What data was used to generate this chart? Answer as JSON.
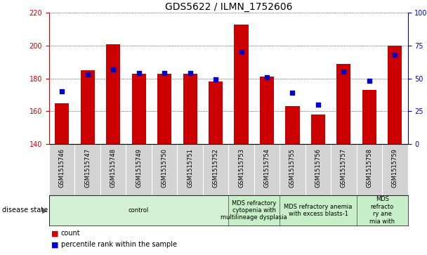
{
  "title": "GDS5622 / ILMN_1752606",
  "samples": [
    "GSM1515746",
    "GSM1515747",
    "GSM1515748",
    "GSM1515749",
    "GSM1515750",
    "GSM1515751",
    "GSM1515752",
    "GSM1515753",
    "GSM1515754",
    "GSM1515755",
    "GSM1515756",
    "GSM1515757",
    "GSM1515758",
    "GSM1515759"
  ],
  "counts": [
    165,
    185,
    201,
    183,
    183,
    183,
    178,
    213,
    181,
    163,
    158,
    189,
    173,
    200
  ],
  "percentile_ranks": [
    40,
    53,
    57,
    54,
    54,
    54,
    49,
    70,
    51,
    39,
    30,
    55,
    48,
    68
  ],
  "ylim_left": [
    140,
    220
  ],
  "ylim_right": [
    0,
    100
  ],
  "yticks_left": [
    140,
    160,
    180,
    200,
    220
  ],
  "yticks_right": [
    0,
    25,
    50,
    75,
    100
  ],
  "disease_groups": [
    {
      "label": "control",
      "start": 0,
      "end": 7,
      "color": "#d4f0d4"
    },
    {
      "label": "MDS refractory\ncytopenia with\nmultilineage dysplasia",
      "start": 7,
      "end": 9,
      "color": "#c8f0c8"
    },
    {
      "label": "MDS refractory anemia\nwith excess blasts-1",
      "start": 9,
      "end": 12,
      "color": "#c8f0c8"
    },
    {
      "label": "MDS\nrefracto\nry ane\nmia with",
      "start": 12,
      "end": 14,
      "color": "#c8f0c8"
    }
  ],
  "bar_color": "#cc0000",
  "dot_color": "#0000cc",
  "bar_width": 0.55,
  "dot_size": 25,
  "background_color": "#ffffff",
  "tick_label_color_left": "#cc0000",
  "tick_label_color_right": "#0000cc",
  "title_fontsize": 10,
  "tick_fontsize": 7,
  "sample_fontsize": 6,
  "disease_fontsize": 6,
  "legend_fontsize": 7
}
